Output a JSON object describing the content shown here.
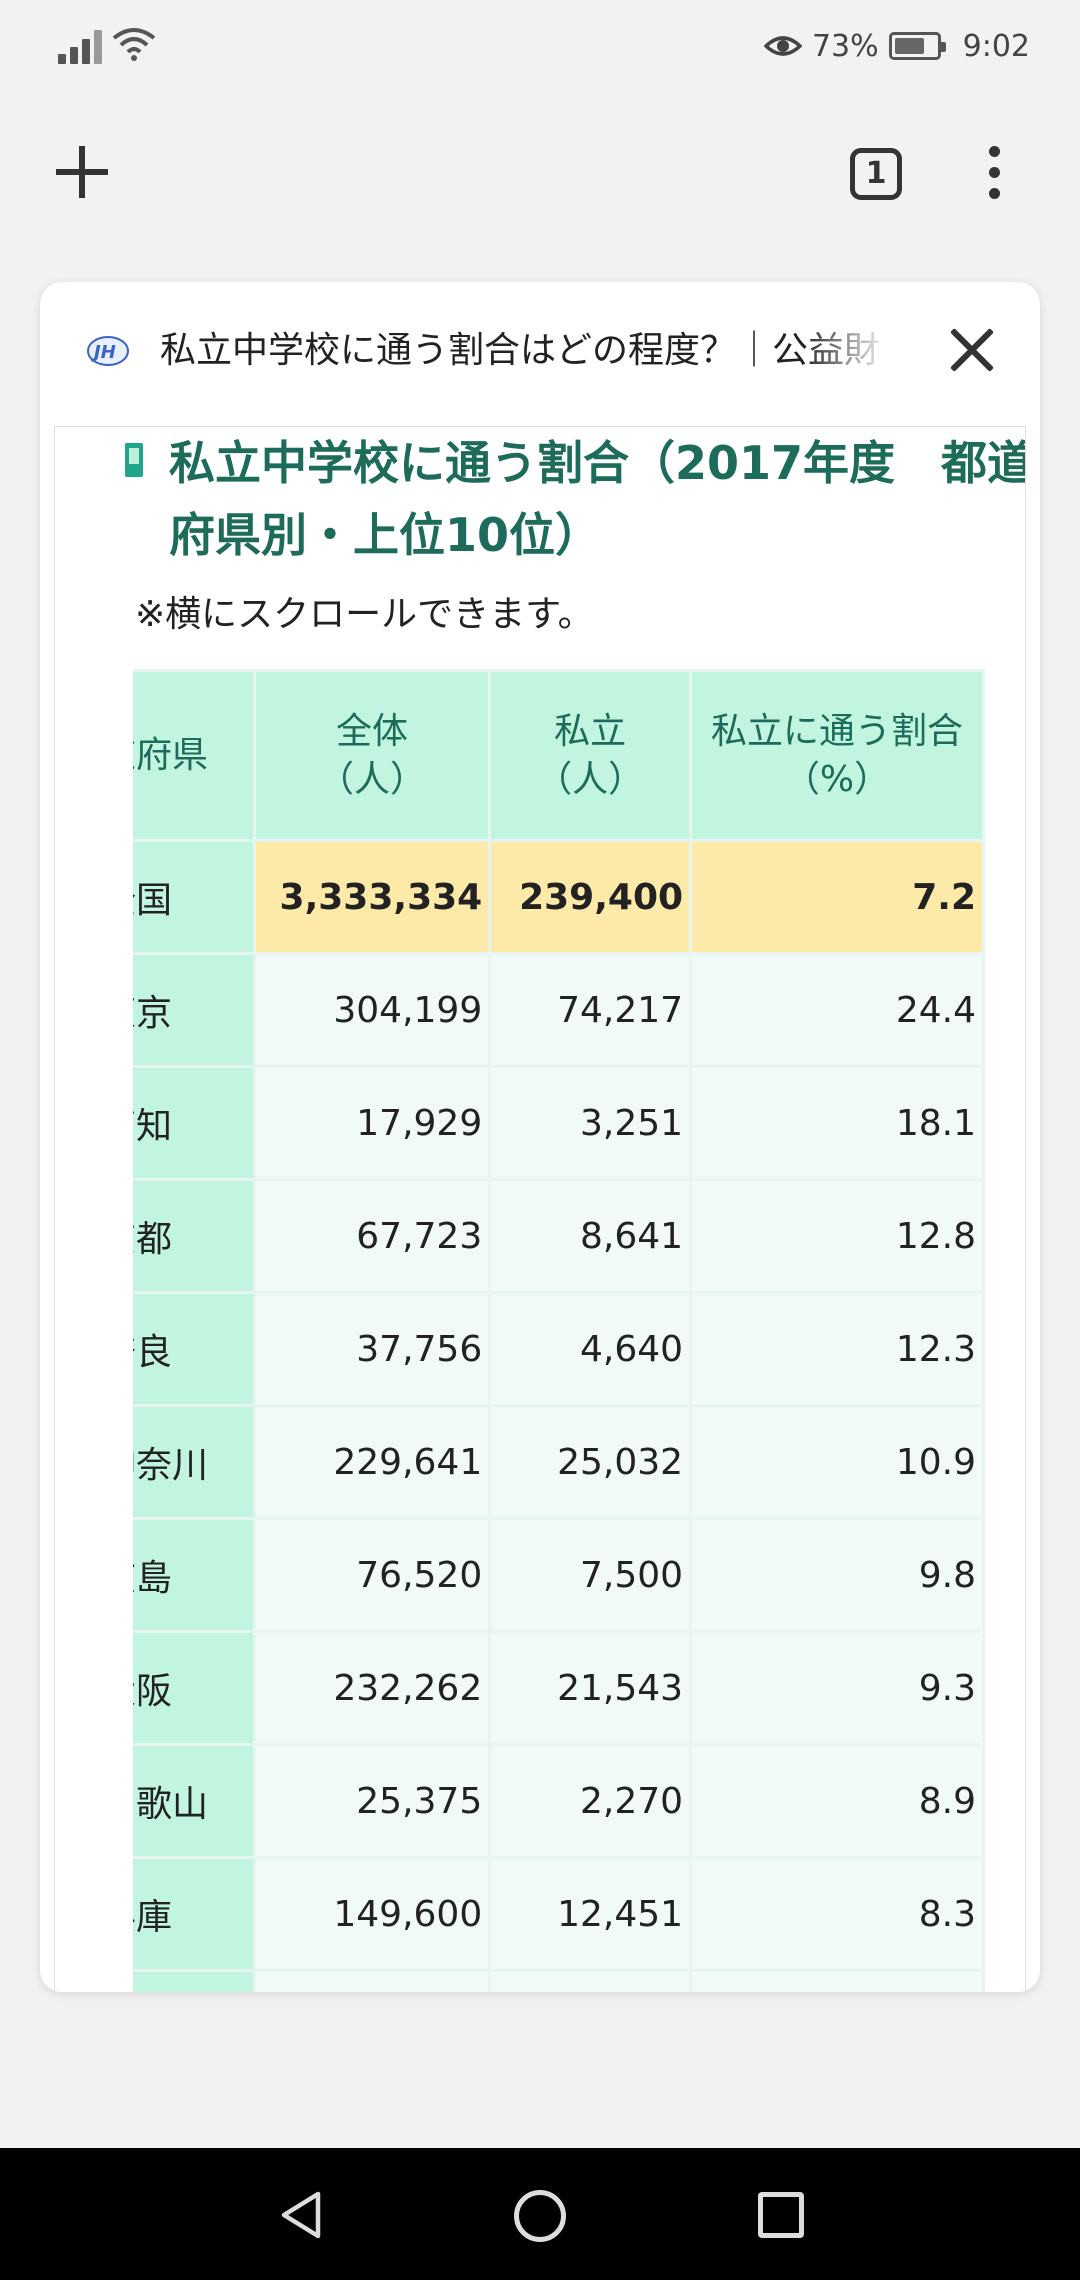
{
  "status": {
    "battery_text": "73%",
    "battery_level": 0.73,
    "time": "9:02",
    "icons": [
      "signal-icon",
      "wifi-icon",
      "eye-icon",
      "battery-icon"
    ]
  },
  "toolbar": {
    "tab_count": "1",
    "icons": [
      "new-tab-plus-icon",
      "tab-switcher-icon",
      "more-vert-icon"
    ]
  },
  "card": {
    "title": "私立中学校に通う割合はどの程度？｜公益財",
    "heading": "私立中学校に通う割合（2017年度　都道府県別・上位10位）",
    "note": "※横にスクロールできます。",
    "table": {
      "headers": [
        [
          "道府県",
          ""
        ],
        [
          "全体",
          "（人）"
        ],
        [
          "私立",
          "（人）"
        ],
        [
          "私立に通う割合",
          "（%）"
        ]
      ],
      "rows": [
        {
          "pref": "全国",
          "total": "3,333,334",
          "private": "239,400",
          "ratio": "7.2"
        },
        {
          "pref": "東京",
          "total": "304,199",
          "private": "74,217",
          "ratio": "24.4"
        },
        {
          "pref": "高知",
          "total": "17,929",
          "private": "3,251",
          "ratio": "18.1"
        },
        {
          "pref": "京都",
          "total": "67,723",
          "private": "8,641",
          "ratio": "12.8"
        },
        {
          "pref": "奈良",
          "total": "37,756",
          "private": "4,640",
          "ratio": "12.3"
        },
        {
          "pref": "神奈川",
          "total": "229,641",
          "private": "25,032",
          "ratio": "10.9"
        },
        {
          "pref": "広島",
          "total": "76,520",
          "private": "7,500",
          "ratio": "9.8"
        },
        {
          "pref": "大阪",
          "total": "232,262",
          "private": "21,543",
          "ratio": "9.3"
        },
        {
          "pref": "和歌山",
          "total": "25,375",
          "private": "2,270",
          "ratio": "8.9"
        },
        {
          "pref": "兵庫",
          "total": "149,600",
          "private": "12,451",
          "ratio": "8.3"
        },
        {
          "pref": "",
          "total": "",
          "private": "",
          "ratio": ""
        }
      ]
    }
  },
  "colors": {
    "header_bg": "#c2f5df",
    "total_row_bg": "#fde9a8",
    "cell_bg": "#f2faf7",
    "heading_text": "#1d6b5a"
  },
  "navbar": {
    "icons": [
      "back-icon",
      "home-icon",
      "recents-icon"
    ]
  }
}
